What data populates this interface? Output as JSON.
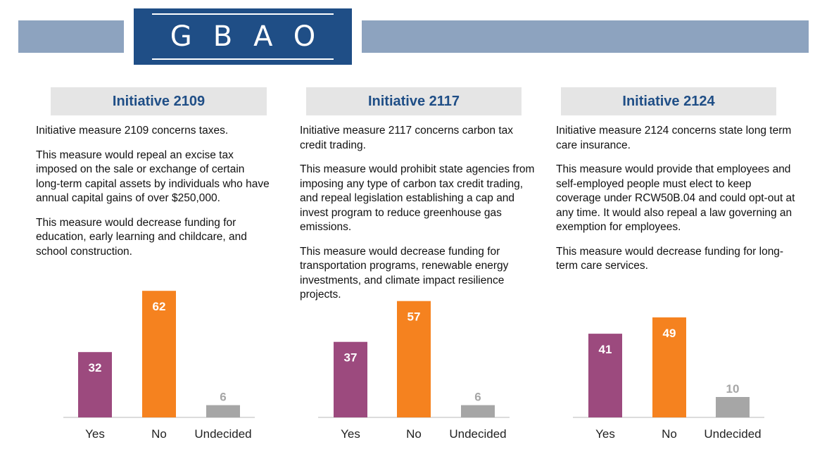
{
  "logo": {
    "text": "GBAO"
  },
  "colors": {
    "band": "#8da3bf",
    "logo_bg": "#1f4e86",
    "header_text": "#1f4e86",
    "yes": "#9c4a7e",
    "no": "#f5821f",
    "undecided": "#a6a6a6",
    "baseline": "#d0d0d0"
  },
  "panels": [
    {
      "title": "Initiative 2109",
      "paragraphs": [
        "Initiative measure 2109 concerns taxes.",
        "This measure would repeal an excise tax imposed on the sale or exchange of certain long-term capital assets by individuals who have annual capital gains of over $250,000.",
        "This measure would decrease funding for education, early learning and childcare, and school construction."
      ]
    },
    {
      "title": "Initiative 2117",
      "paragraphs": [
        "Initiative measure 2117 concerns carbon tax credit trading.",
        "This measure would prohibit state agencies from imposing any type of carbon tax credit trading, and repeal legislation establishing a cap and invest program to reduce greenhouse gas emissions.",
        "This measure would decrease funding for transportation programs, renewable energy investments, and climate impact resilience projects."
      ]
    },
    {
      "title": "Initiative 2124",
      "paragraphs": [
        "Initiative measure 2124 concerns state long term care insurance.",
        "This measure would provide that employees and self-employed people must elect to keep coverage under RCW50B.04 and could opt-out at any time. It would also repeal a law governing an exemption for employees.",
        "This measure would decrease funding for long-term care services."
      ]
    }
  ],
  "chart_data": [
    {
      "type": "bar",
      "categories": [
        "Yes",
        "No",
        "Undecided"
      ],
      "values": [
        32,
        62,
        6
      ]
    },
    {
      "type": "bar",
      "categories": [
        "Yes",
        "No",
        "Undecided"
      ],
      "values": [
        37,
        57,
        6
      ]
    },
    {
      "type": "bar",
      "categories": [
        "Yes",
        "No",
        "Undecided"
      ],
      "values": [
        41,
        49,
        10
      ]
    }
  ]
}
